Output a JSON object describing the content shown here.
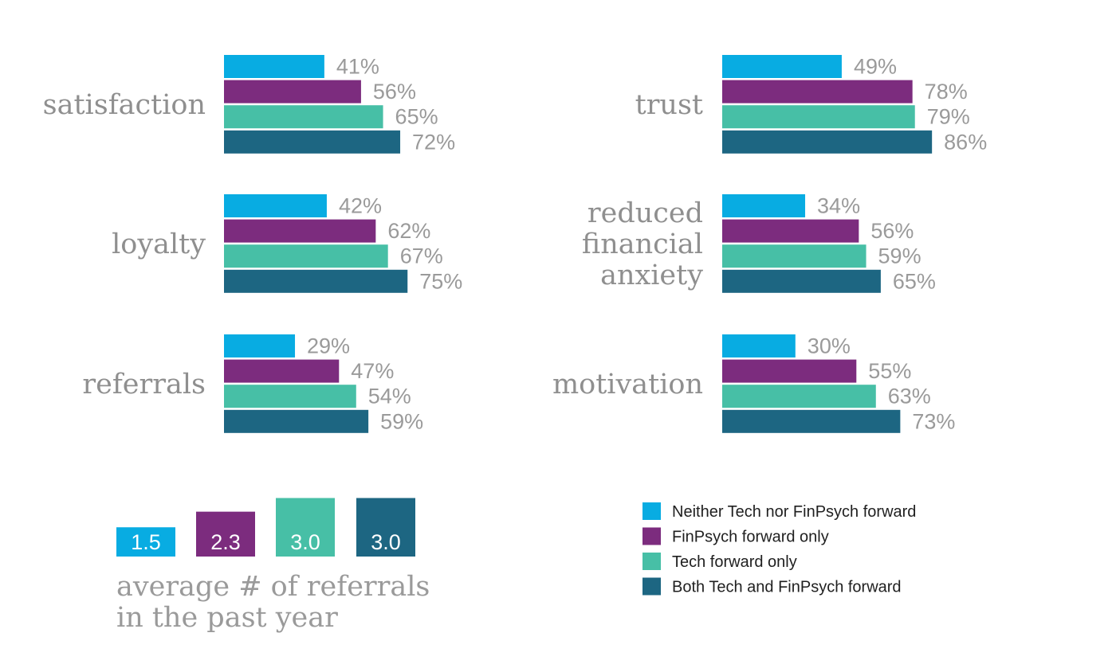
{
  "colors": [
    "#08ace2",
    "#7c2c7e",
    "#47bfa6",
    "#1d6682"
  ],
  "legend": {
    "entries": [
      "Neither Tech nor FinPsych forward",
      "FinPsych forward only",
      "Tech forward only",
      "Both Tech and FinPsych forward"
    ]
  },
  "chart_data": [
    {
      "type": "bar",
      "orientation": "horizontal",
      "title": "",
      "series": [
        "Neither Tech nor FinPsych forward",
        "FinPsych forward only",
        "Tech forward only",
        "Both Tech and FinPsych forward"
      ],
      "groups": [
        {
          "label": [
            "satisfaction"
          ],
          "values": [
            41,
            56,
            65,
            72
          ],
          "value_labels": [
            "41%",
            "56%",
            "65%",
            "72%"
          ]
        },
        {
          "label": [
            "loyalty"
          ],
          "values": [
            42,
            62,
            67,
            75
          ],
          "value_labels": [
            "42%",
            "62%",
            "67%",
            "75%"
          ]
        },
        {
          "label": [
            "referrals"
          ],
          "values": [
            29,
            47,
            54,
            59
          ],
          "value_labels": [
            "29%",
            "47%",
            "54%",
            "59%"
          ]
        },
        {
          "label": [
            "trust"
          ],
          "values": [
            49,
            78,
            79,
            86
          ],
          "value_labels": [
            "49%",
            "78%",
            "79%",
            "86%"
          ]
        },
        {
          "label": [
            "reduced",
            "financial",
            "anxiety"
          ],
          "values": [
            34,
            56,
            59,
            65
          ],
          "value_labels": [
            "34%",
            "56%",
            "59%",
            "65%"
          ]
        },
        {
          "label": [
            "motivation"
          ],
          "values": [
            30,
            55,
            63,
            73
          ],
          "value_labels": [
            "30%",
            "55%",
            "63%",
            "73%"
          ]
        }
      ],
      "unit": "%"
    },
    {
      "type": "bar",
      "orientation": "vertical",
      "caption": [
        "average # of referrals",
        "in the past year"
      ],
      "values": [
        1.5,
        2.3,
        3.0,
        3.0
      ],
      "value_labels": [
        "1.5",
        "2.3",
        "3.0",
        "3.0"
      ]
    }
  ]
}
